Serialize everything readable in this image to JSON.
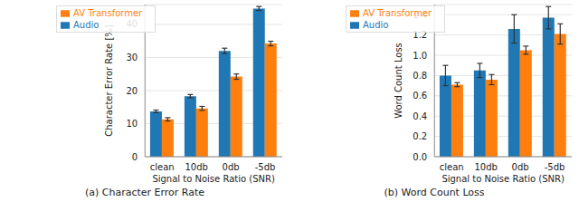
{
  "chart_data": [
    {
      "type": "bar",
      "title": "(a) Character Error Rate",
      "x_label": "Signal to Noise Ratio (SNR)",
      "y_label": "Character Error Rate [%]",
      "categories": [
        "clean",
        "10db",
        "0db",
        "-5db"
      ],
      "series": [
        {
          "name": "Audio",
          "color": "#1f77b4",
          "values": [
            13.7,
            18.3,
            32.0,
            44.8
          ],
          "errors": [
            0.4,
            0.5,
            0.8,
            0.6
          ]
        },
        {
          "name": "AV Transformer",
          "color": "#ff7f0e",
          "values": [
            11.3,
            14.6,
            24.2,
            34.2
          ],
          "errors": [
            0.5,
            0.6,
            0.8,
            0.7
          ]
        }
      ],
      "ylim": [
        0,
        46
      ],
      "yticks": [
        0,
        10,
        20,
        30,
        40
      ],
      "grid": true,
      "legend": "upper left"
    },
    {
      "type": "bar",
      "title": "(b) Word Count Loss",
      "x_label": "Signal to Noise Ratio (SNR)",
      "y_label": "Word Count Loss",
      "categories": [
        "clean",
        "10db",
        "0db",
        "-5db"
      ],
      "series": [
        {
          "name": "Audio",
          "color": "#1f77b4",
          "values": [
            0.8,
            0.85,
            1.26,
            1.37
          ],
          "errors": [
            0.1,
            0.07,
            0.14,
            0.11
          ]
        },
        {
          "name": "AV Transformer",
          "color": "#ff7f0e",
          "values": [
            0.71,
            0.76,
            1.05,
            1.21
          ],
          "errors": [
            0.02,
            0.05,
            0.04,
            0.1
          ]
        }
      ],
      "ylim": [
        0,
        1.5
      ],
      "yticks": [
        {
          "value": 0,
          "label": "0.0"
        },
        0.2,
        0.4,
        0.6,
        0.8,
        {
          "value": 1,
          "label": "1.0"
        },
        1.2,
        1.4
      ],
      "grid": true,
      "legend": "upper left"
    }
  ]
}
